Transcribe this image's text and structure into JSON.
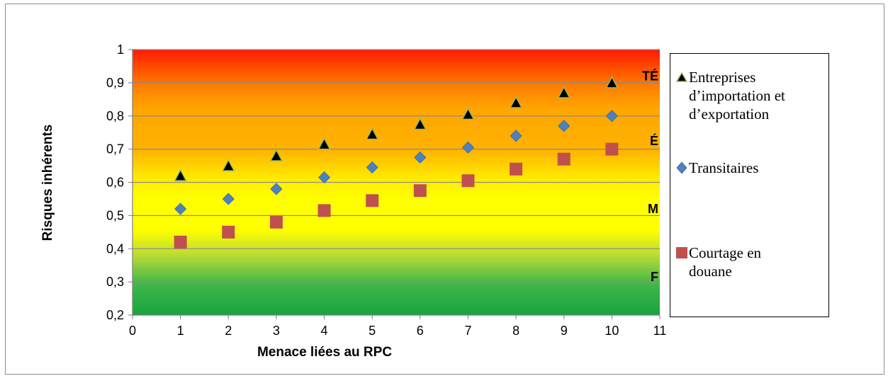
{
  "chart_data": {
    "type": "scatter",
    "xlabel": "Menace liées au RPC",
    "ylabel": "Risques inhérents",
    "xlim": [
      0,
      11
    ],
    "ylim": [
      0.2,
      1
    ],
    "x_ticks": [
      "0",
      "1",
      "2",
      "3",
      "4",
      "5",
      "6",
      "7",
      "8",
      "9",
      "10",
      "11"
    ],
    "y_ticks": [
      "0,2",
      "0,3",
      "0,4",
      "0,5",
      "0,6",
      "0,7",
      "0,8",
      "0,9",
      "1"
    ],
    "grid": true,
    "legend_position": "right",
    "background_bands": [
      {
        "label": "TÉ",
        "level": 0.92
      },
      {
        "label": "É",
        "level": 0.725
      },
      {
        "label": "M",
        "level": 0.52
      },
      {
        "label": "F",
        "level": 0.315
      }
    ],
    "series": [
      {
        "name": "Entreprises d’importation et d’exportation",
        "marker": "triangle",
        "color": "#000000",
        "x": [
          1,
          2,
          3,
          4,
          5,
          6,
          7,
          8,
          9,
          10
        ],
        "y": [
          0.62,
          0.65,
          0.68,
          0.715,
          0.745,
          0.775,
          0.805,
          0.84,
          0.87,
          0.9
        ]
      },
      {
        "name": "Transitaires",
        "marker": "diamond",
        "color": "#4f81bd",
        "x": [
          1,
          2,
          3,
          4,
          5,
          6,
          7,
          8,
          9,
          10
        ],
        "y": [
          0.52,
          0.55,
          0.58,
          0.615,
          0.645,
          0.675,
          0.705,
          0.74,
          0.77,
          0.8
        ]
      },
      {
        "name": "Courtage en douane",
        "marker": "square",
        "color": "#c0504d",
        "x": [
          1,
          2,
          3,
          4,
          5,
          6,
          7,
          8,
          9,
          10
        ],
        "y": [
          0.42,
          0.45,
          0.48,
          0.515,
          0.545,
          0.575,
          0.605,
          0.64,
          0.67,
          0.7
        ]
      }
    ]
  },
  "legend": {
    "items": [
      {
        "label": "Entreprises d’importation et d’exportation"
      },
      {
        "label": "Transitaires"
      },
      {
        "label": "Courtage en douane"
      }
    ]
  }
}
